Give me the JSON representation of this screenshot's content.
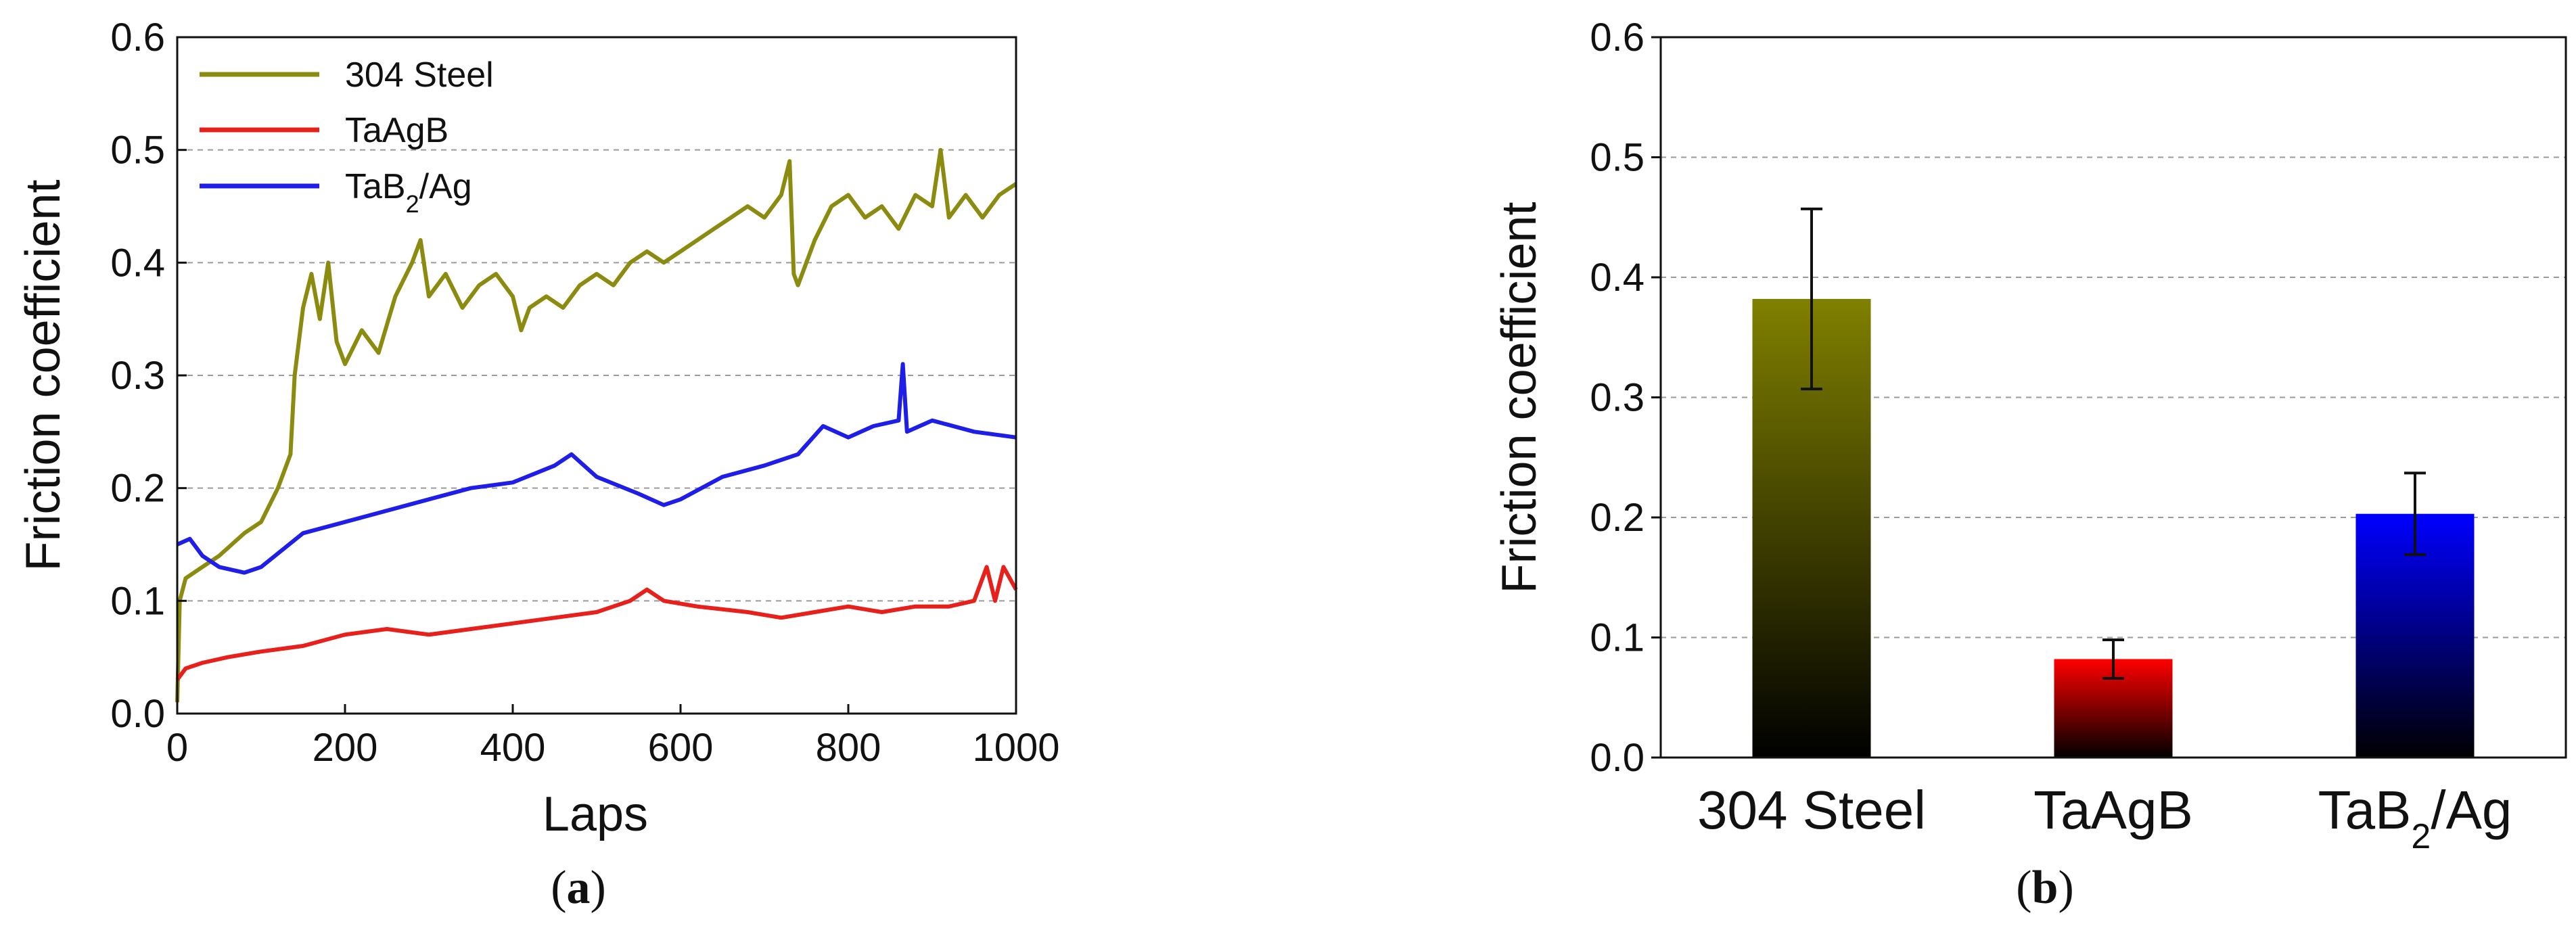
{
  "chart_data": [
    {
      "id": "a",
      "type": "line",
      "panel_label": "(a)",
      "panel_letter": "a",
      "xlabel": "Laps",
      "ylabel": "Friction coefficient",
      "xlim": [
        0,
        1000
      ],
      "ylim": [
        0,
        0.6
      ],
      "xticks": [
        "0",
        "200",
        "400",
        "600",
        "800",
        "1000"
      ],
      "yticks": [
        "0.0",
        "0.1",
        "0.2",
        "0.3",
        "0.4",
        "0.5",
        "0.6"
      ],
      "grid": true,
      "legend_position": "top-left",
      "series": [
        {
          "name": "304 Steel",
          "color": "#8b8b10",
          "points": [
            [
              0,
              0.01
            ],
            [
              3,
              0.1
            ],
            [
              10,
              0.12
            ],
            [
              30,
              0.13
            ],
            [
              50,
              0.14
            ],
            [
              80,
              0.16
            ],
            [
              100,
              0.17
            ],
            [
              120,
              0.2
            ],
            [
              135,
              0.23
            ],
            [
              140,
              0.3
            ],
            [
              150,
              0.36
            ],
            [
              160,
              0.39
            ],
            [
              170,
              0.35
            ],
            [
              180,
              0.4
            ],
            [
              190,
              0.33
            ],
            [
              200,
              0.31
            ],
            [
              220,
              0.34
            ],
            [
              240,
              0.32
            ],
            [
              260,
              0.37
            ],
            [
              280,
              0.4
            ],
            [
              290,
              0.42
            ],
            [
              300,
              0.37
            ],
            [
              320,
              0.39
            ],
            [
              340,
              0.36
            ],
            [
              360,
              0.38
            ],
            [
              380,
              0.39
            ],
            [
              400,
              0.37
            ],
            [
              410,
              0.34
            ],
            [
              420,
              0.36
            ],
            [
              440,
              0.37
            ],
            [
              460,
              0.36
            ],
            [
              480,
              0.38
            ],
            [
              500,
              0.39
            ],
            [
              520,
              0.38
            ],
            [
              540,
              0.4
            ],
            [
              560,
              0.41
            ],
            [
              580,
              0.4
            ],
            [
              600,
              0.41
            ],
            [
              620,
              0.42
            ],
            [
              640,
              0.43
            ],
            [
              660,
              0.44
            ],
            [
              680,
              0.45
            ],
            [
              700,
              0.44
            ],
            [
              720,
              0.46
            ],
            [
              730,
              0.49
            ],
            [
              735,
              0.39
            ],
            [
              740,
              0.38
            ],
            [
              760,
              0.42
            ],
            [
              780,
              0.45
            ],
            [
              800,
              0.46
            ],
            [
              820,
              0.44
            ],
            [
              840,
              0.45
            ],
            [
              860,
              0.43
            ],
            [
              880,
              0.46
            ],
            [
              900,
              0.45
            ],
            [
              910,
              0.5
            ],
            [
              920,
              0.44
            ],
            [
              940,
              0.46
            ],
            [
              960,
              0.44
            ],
            [
              980,
              0.46
            ],
            [
              1000,
              0.47
            ]
          ]
        },
        {
          "name": "TaAgB",
          "color": "#e8201c",
          "points": [
            [
              0,
              0.03
            ],
            [
              10,
              0.04
            ],
            [
              30,
              0.045
            ],
            [
              60,
              0.05
            ],
            [
              100,
              0.055
            ],
            [
              150,
              0.06
            ],
            [
              200,
              0.07
            ],
            [
              250,
              0.075
            ],
            [
              300,
              0.07
            ],
            [
              350,
              0.075
            ],
            [
              400,
              0.08
            ],
            [
              450,
              0.085
            ],
            [
              500,
              0.09
            ],
            [
              540,
              0.1
            ],
            [
              560,
              0.11
            ],
            [
              580,
              0.1
            ],
            [
              620,
              0.095
            ],
            [
              680,
              0.09
            ],
            [
              720,
              0.085
            ],
            [
              760,
              0.09
            ],
            [
              800,
              0.095
            ],
            [
              840,
              0.09
            ],
            [
              880,
              0.095
            ],
            [
              920,
              0.095
            ],
            [
              950,
              0.1
            ],
            [
              965,
              0.13
            ],
            [
              975,
              0.1
            ],
            [
              985,
              0.13
            ],
            [
              1000,
              0.11
            ]
          ]
        },
        {
          "name": "TaB2/Ag",
          "color": "#1e1ee8",
          "points": [
            [
              0,
              0.15
            ],
            [
              15,
              0.155
            ],
            [
              30,
              0.14
            ],
            [
              50,
              0.13
            ],
            [
              80,
              0.125
            ],
            [
              100,
              0.13
            ],
            [
              150,
              0.16
            ],
            [
              200,
              0.17
            ],
            [
              250,
              0.18
            ],
            [
              300,
              0.19
            ],
            [
              350,
              0.2
            ],
            [
              400,
              0.205
            ],
            [
              450,
              0.22
            ],
            [
              470,
              0.23
            ],
            [
              500,
              0.21
            ],
            [
              550,
              0.195
            ],
            [
              580,
              0.185
            ],
            [
              600,
              0.19
            ],
            [
              650,
              0.21
            ],
            [
              700,
              0.22
            ],
            [
              740,
              0.23
            ],
            [
              770,
              0.255
            ],
            [
              800,
              0.245
            ],
            [
              830,
              0.255
            ],
            [
              860,
              0.26
            ],
            [
              865,
              0.31
            ],
            [
              870,
              0.25
            ],
            [
              900,
              0.26
            ],
            [
              950,
              0.25
            ],
            [
              1000,
              0.245
            ]
          ]
        }
      ]
    },
    {
      "id": "b",
      "type": "bar",
      "panel_label": "(b)",
      "panel_letter": "b",
      "ylabel": "Friction coefficient",
      "ylim": [
        0,
        0.6
      ],
      "yticks": [
        "0.0",
        "0.1",
        "0.2",
        "0.3",
        "0.4",
        "0.5",
        "0.6"
      ],
      "grid": true,
      "categories": [
        "304 Steel",
        "TaAgB",
        "TaB2/Ag"
      ],
      "values": [
        0.382,
        0.082,
        0.203
      ],
      "errors": [
        0.075,
        0.016,
        0.034
      ],
      "colors": [
        "#808000",
        "#ff0000",
        "#0000ff"
      ]
    }
  ]
}
